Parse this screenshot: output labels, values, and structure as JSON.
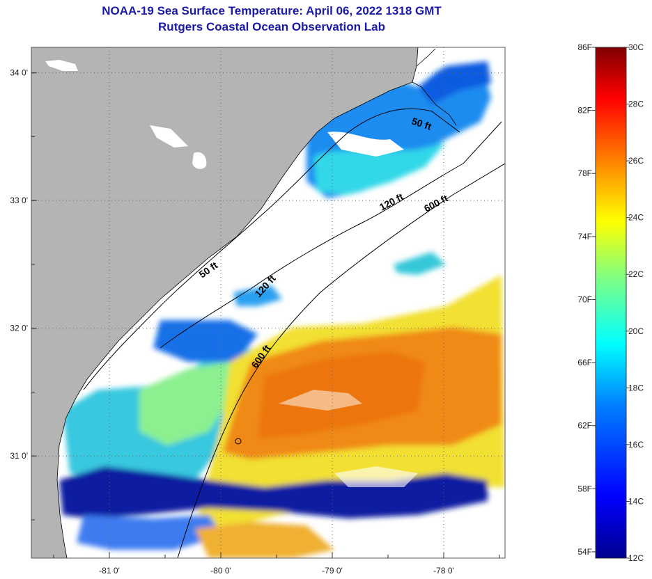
{
  "header": {
    "title": "NOAA-19 Sea Surface Temperature:  April 06, 2022 1318 GMT",
    "subtitle": "Rutgers Coastal Ocean Observation Lab"
  },
  "map": {
    "lon_range": [
      -81.7,
      -77.45
    ],
    "lat_range": [
      30.2,
      34.2
    ],
    "lon_ticks": [
      {
        "value": -81,
        "label": "-81 0'"
      },
      {
        "value": -80,
        "label": "-80 0'"
      },
      {
        "value": -79,
        "label": "-79 0'"
      },
      {
        "value": -78,
        "label": "-78 0'"
      }
    ],
    "lat_ticks": [
      {
        "value": 34,
        "label": "34 0'"
      },
      {
        "value": 33,
        "label": "33 0'"
      },
      {
        "value": 32,
        "label": "32 0'"
      },
      {
        "value": 31,
        "label": "31 0'"
      }
    ],
    "grid": true,
    "land_color": "#b4b4b4",
    "cloud_color": "#ffffff",
    "contours": [
      {
        "label": "50 ft"
      },
      {
        "label": "120 ft"
      },
      {
        "label": "600 ft"
      },
      {
        "label": "50 ft"
      },
      {
        "label": "120 ft"
      },
      {
        "label": "600 ft"
      }
    ]
  },
  "colorbar": {
    "fahrenheit_labels": [
      "86F",
      "82F",
      "78F",
      "74F",
      "70F",
      "66F",
      "62F",
      "58F",
      "54F"
    ],
    "celsius_labels": [
      "30C",
      "28C",
      "26C",
      "24C",
      "22C",
      "20C",
      "18C",
      "16C",
      "14C",
      "12C"
    ],
    "celsius_range": [
      12,
      30
    ],
    "colors": [
      "#00008f",
      "#0000ff",
      "#0080ff",
      "#00ffff",
      "#80ff80",
      "#ffff00",
      "#ff8000",
      "#ff0000",
      "#800000"
    ]
  }
}
